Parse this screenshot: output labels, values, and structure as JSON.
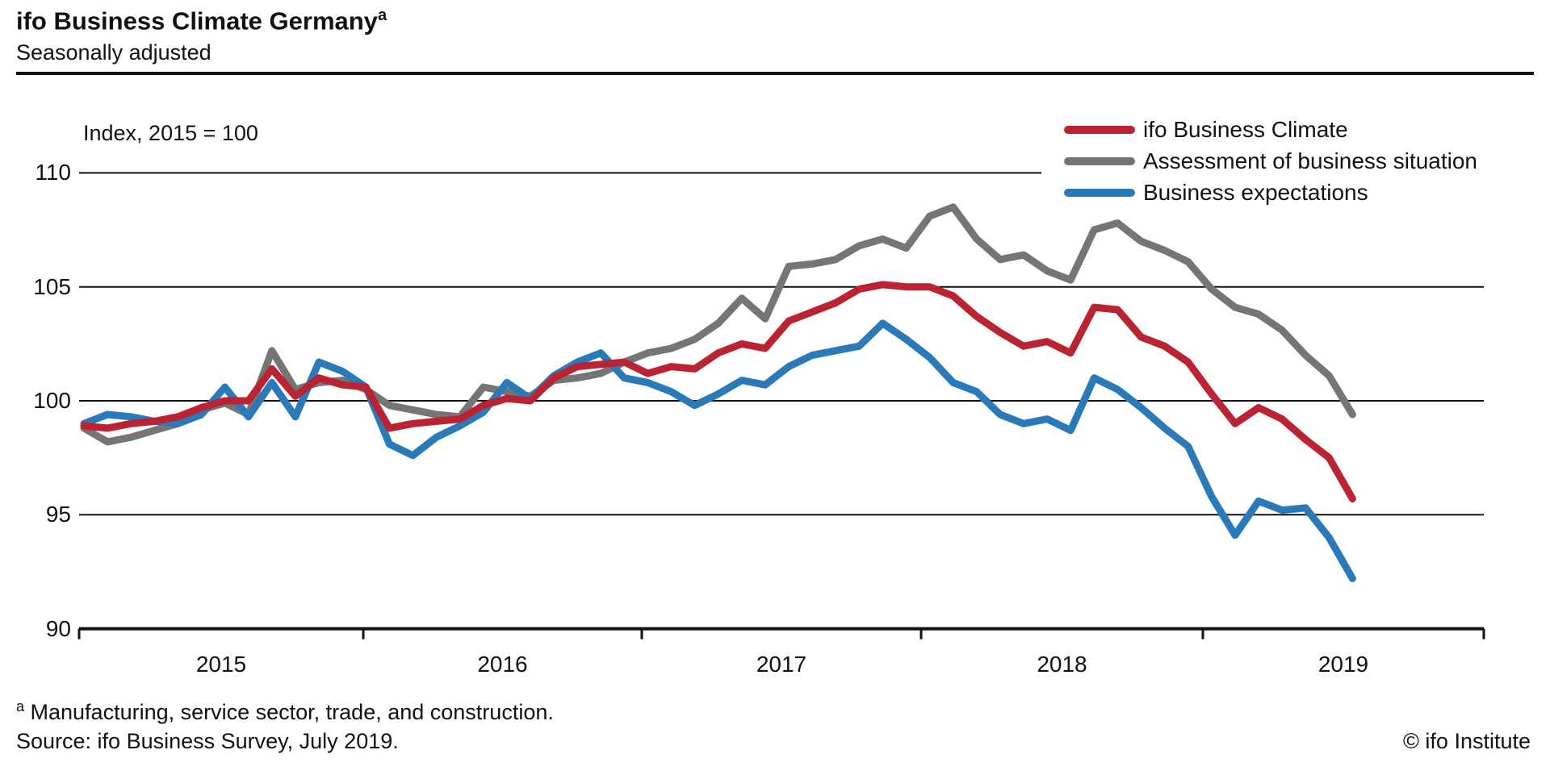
{
  "header": {
    "title": "ifo Business Climate Germany",
    "title_superscript": "a",
    "subtitle": "Seasonally adjusted"
  },
  "axis_note": "Index, 2015 = 100",
  "legend": [
    {
      "label": "ifo Business Climate",
      "series": "climate",
      "color": "#bc2332"
    },
    {
      "label": "Assessment of business situation",
      "series": "situation",
      "color": "#757575"
    },
    {
      "label": "Business expectations",
      "series": "expectations",
      "color": "#2a7ab9"
    }
  ],
  "footnotes": {
    "note_marker": "a",
    "note_text": " Manufacturing, service sector, trade, and construction.",
    "source": "Source: ifo Business Survey, July 2019.",
    "copyright": "© ifo Institute"
  },
  "chart_data": {
    "type": "line",
    "title": "ifo Business Climate Germany",
    "subtitle": "Seasonally adjusted",
    "ylabel": "Index, 2015 = 100",
    "xlabel": "",
    "frequency": "monthly",
    "x_start": "2015-01",
    "x_end": "2019-07",
    "ylim": [
      90,
      111.8
    ],
    "y_ticks": [
      110,
      105,
      100,
      95,
      90
    ],
    "x_tick_labels": [
      "2015",
      "2016",
      "2017",
      "2018",
      "2019"
    ],
    "grid": "horizontal",
    "legend_position": "top-right",
    "x": [
      "2015-01",
      "2015-02",
      "2015-03",
      "2015-04",
      "2015-05",
      "2015-06",
      "2015-07",
      "2015-08",
      "2015-09",
      "2015-10",
      "2015-11",
      "2015-12",
      "2016-01",
      "2016-02",
      "2016-03",
      "2016-04",
      "2016-05",
      "2016-06",
      "2016-07",
      "2016-08",
      "2016-09",
      "2016-10",
      "2016-11",
      "2016-12",
      "2017-01",
      "2017-02",
      "2017-03",
      "2017-04",
      "2017-05",
      "2017-06",
      "2017-07",
      "2017-08",
      "2017-09",
      "2017-10",
      "2017-11",
      "2017-12",
      "2018-01",
      "2018-02",
      "2018-03",
      "2018-04",
      "2018-05",
      "2018-06",
      "2018-07",
      "2018-08",
      "2018-09",
      "2018-10",
      "2018-11",
      "2018-12",
      "2019-01",
      "2019-02",
      "2019-03",
      "2019-04",
      "2019-05",
      "2019-06",
      "2019-07"
    ],
    "series": [
      {
        "name": "ifo Business Climate",
        "color": "#bc2332",
        "values": [
          98.9,
          98.8,
          99.0,
          99.1,
          99.3,
          99.7,
          100.0,
          100.0,
          101.4,
          100.2,
          101.0,
          100.7,
          100.6,
          98.8,
          99.0,
          99.1,
          99.2,
          99.8,
          100.1,
          100.0,
          101.0,
          101.5,
          101.6,
          101.7,
          101.2,
          101.5,
          101.4,
          102.1,
          102.5,
          102.3,
          103.5,
          103.9,
          104.3,
          104.9,
          105.1,
          105.0,
          105.0,
          104.6,
          103.7,
          103.0,
          102.4,
          102.6,
          102.1,
          104.1,
          104.0,
          102.8,
          102.4,
          101.7,
          100.3,
          99.0,
          99.7,
          99.2,
          98.3,
          97.5,
          95.7
        ]
      },
      {
        "name": "Assessment of business situation",
        "color": "#757575",
        "values": [
          98.8,
          98.2,
          98.4,
          98.7,
          99.0,
          99.6,
          99.9,
          99.4,
          102.2,
          100.5,
          100.8,
          100.9,
          100.5,
          99.8,
          99.6,
          99.4,
          99.3,
          100.6,
          100.4,
          100.2,
          100.9,
          101.0,
          101.2,
          101.7,
          102.1,
          102.3,
          102.7,
          103.4,
          104.5,
          103.6,
          105.9,
          106.0,
          106.2,
          106.8,
          107.1,
          106.7,
          108.1,
          108.5,
          107.1,
          106.2,
          106.4,
          105.7,
          105.3,
          107.5,
          107.8,
          107.0,
          106.6,
          106.1,
          104.9,
          104.1,
          103.8,
          103.1,
          102.0,
          101.1,
          99.4
        ]
      },
      {
        "name": "Business expectations",
        "color": "#2a7ab9",
        "values": [
          99.0,
          99.4,
          99.3,
          99.1,
          99.0,
          99.4,
          100.6,
          99.3,
          100.8,
          99.3,
          101.7,
          101.3,
          100.6,
          98.1,
          97.6,
          98.4,
          98.9,
          99.5,
          100.8,
          100.1,
          101.1,
          101.7,
          102.1,
          101.0,
          100.8,
          100.4,
          99.8,
          100.3,
          100.9,
          100.7,
          101.5,
          102.0,
          102.2,
          102.4,
          103.4,
          102.7,
          101.9,
          100.8,
          100.4,
          99.4,
          99.0,
          99.2,
          98.7,
          101.0,
          100.5,
          99.7,
          98.8,
          98.0,
          95.8,
          94.1,
          95.6,
          95.2,
          95.3,
          94.0,
          92.2
        ]
      }
    ]
  }
}
